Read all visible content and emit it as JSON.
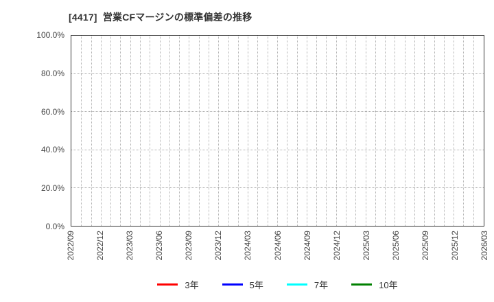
{
  "title": "[4417]  営業CFマージンの標準偏差の推移",
  "chart_data": {
    "type": "line",
    "title": "[4417]  営業CFマージンの標準偏差の推移",
    "xlabel": "",
    "ylabel": "",
    "x_tick_labels": [
      "2022/09",
      "2022/12",
      "2023/03",
      "2023/06",
      "2023/09",
      "2023/12",
      "2024/03",
      "2024/06",
      "2024/09",
      "2024/12",
      "2025/03",
      "2025/06",
      "2025/09",
      "2025/12",
      "2026/03"
    ],
    "months_per_label": 3,
    "y_tick_labels": [
      "0.0%",
      "20.0%",
      "40.0%",
      "60.0%",
      "80.0%",
      "100.0%"
    ],
    "ylim": [
      0,
      100
    ],
    "grid": true,
    "legend_position": "bottom",
    "series": [
      {
        "name": "3年",
        "color": "#ff0000",
        "values": []
      },
      {
        "name": "5年",
        "color": "#0000ff",
        "values": []
      },
      {
        "name": "7年",
        "color": "#00ffff",
        "values": []
      },
      {
        "name": "10年",
        "color": "#008000",
        "values": []
      }
    ]
  }
}
